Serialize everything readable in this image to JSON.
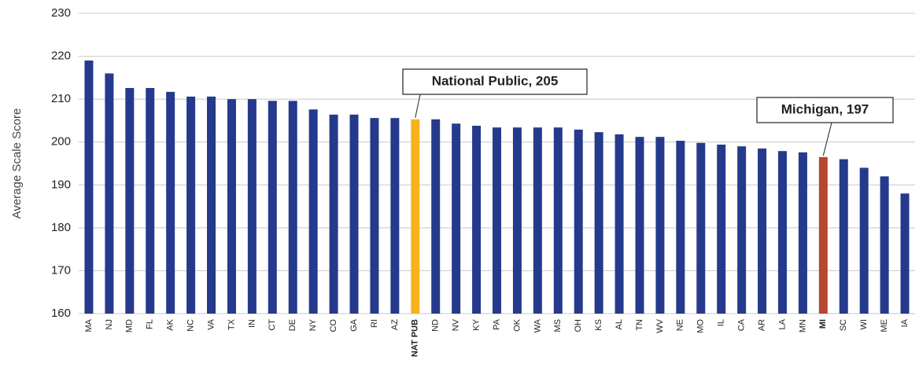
{
  "chart_data": {
    "type": "bar",
    "y_label": "Average Scale Score",
    "categories": [
      "MA",
      "NJ",
      "MD",
      "FL",
      "AK",
      "NC",
      "VA",
      "TX",
      "IN",
      "CT",
      "DE",
      "NY",
      "CO",
      "GA",
      "RI",
      "AZ",
      "NAT PUB",
      "ND",
      "NV",
      "KY",
      "PA",
      "OK",
      "WA",
      "MS",
      "OH",
      "KS",
      "AL",
      "TN",
      "WV",
      "NE",
      "MO",
      "IL",
      "CA",
      "AR",
      "LA",
      "MN",
      "MI",
      "SC",
      "WI",
      "ME",
      "IA"
    ],
    "values": [
      219,
      216,
      212.6,
      212.6,
      211.7,
      210.6,
      210.6,
      210,
      210,
      209.6,
      209.6,
      207.6,
      206.4,
      206.4,
      205.6,
      205.6,
      205.3,
      205.3,
      204.3,
      203.8,
      203.4,
      203.4,
      203.4,
      203.4,
      202.9,
      202.3,
      201.8,
      201.2,
      201.2,
      200.3,
      199.8,
      199.4,
      199,
      198.5,
      197.9,
      197.6,
      196.5,
      196,
      194,
      192,
      188
    ],
    "color": "#253a8c",
    "colors": [
      "#253a8c",
      "#253a8c",
      "#253a8c",
      "#253a8c",
      "#253a8c",
      "#253a8c",
      "#253a8c",
      "#253a8c",
      "#253a8c",
      "#253a8c",
      "#253a8c",
      "#253a8c",
      "#253a8c",
      "#253a8c",
      "#253a8c",
      "#253a8c",
      "#f5b21a",
      "#253a8c",
      "#253a8c",
      "#253a8c",
      "#253a8c",
      "#253a8c",
      "#253a8c",
      "#253a8c",
      "#253a8c",
      "#253a8c",
      "#253a8c",
      "#253a8c",
      "#253a8c",
      "#253a8c",
      "#253a8c",
      "#253a8c",
      "#253a8c",
      "#253a8c",
      "#253a8c",
      "#253a8c",
      "#b5482f",
      "#253a8c",
      "#253a8c",
      "#253a8c",
      "#253a8c"
    ],
    "annotations": [
      {
        "text": "National Public, 205",
        "index": 16
      },
      {
        "text": "Michigan, 197",
        "index": 36
      }
    ],
    "ylim": [
      160,
      230
    ],
    "yticks": [
      160,
      170,
      180,
      190,
      200,
      210,
      220,
      230
    ],
    "grid": true
  }
}
